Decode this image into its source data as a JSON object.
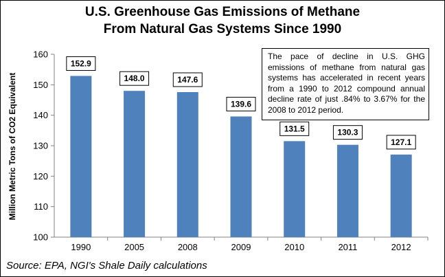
{
  "chart_data": {
    "type": "bar",
    "title": "U.S. Greenhouse Gas Emissions of Methane",
    "subtitle": "From Natural Gas Systems Since 1990",
    "ylabel": "Million Metric Tons of CO2 Equivalent",
    "xlabel": "",
    "categories": [
      "1990",
      "2005",
      "2008",
      "2009",
      "2010",
      "2011",
      "2012"
    ],
    "values": [
      152.9,
      148.0,
      147.6,
      139.6,
      131.5,
      130.3,
      127.1
    ],
    "value_labels": [
      "152.9",
      "148.0",
      "147.6",
      "139.6",
      "131.5",
      "130.3",
      "127.1"
    ],
    "ylim": [
      100,
      160
    ],
    "yticks": [
      "100",
      "110",
      "120",
      "130",
      "140",
      "150",
      "160"
    ],
    "grid": false,
    "bar_color": "#4F81BD",
    "annotation": "The pace of decline in U.S. GHG emissions of methane from natural gas systems has accelerated in recent years from a 1990 to 2012 compound annual decline rate of just .84% to 3.67% for the 2008 to 2012 period.",
    "source": "Source: EPA, NGI's Shale Daily calculations"
  }
}
